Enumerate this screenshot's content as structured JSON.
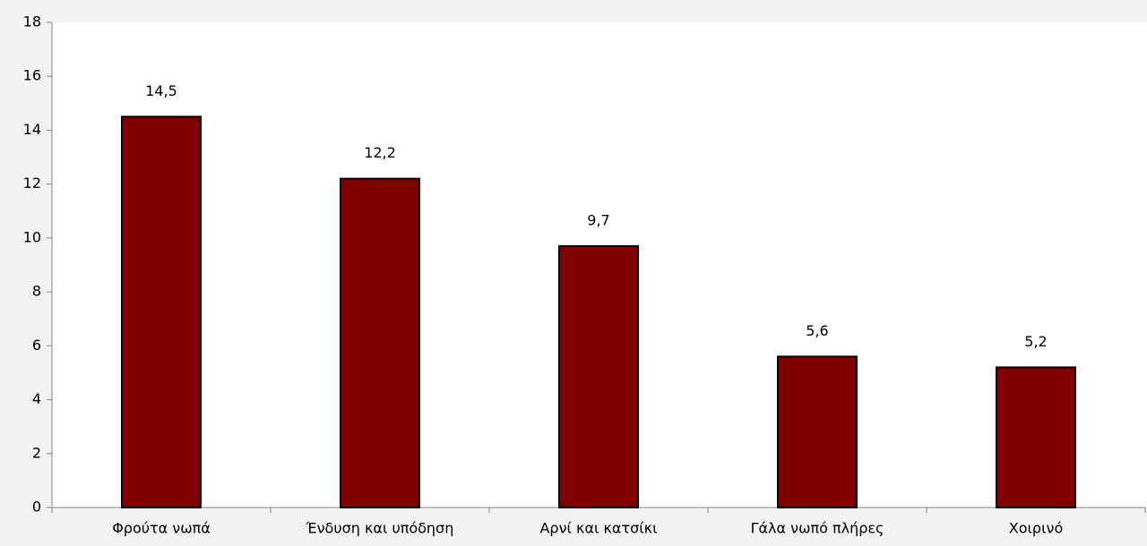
{
  "chart_data": {
    "type": "bar",
    "categories": [
      "Φρούτα νωπά",
      "Ένδυση και υπόδηση",
      "Αρνί και κατσίκι",
      "Γάλα νωπό πλήρες",
      "Χοιρινό"
    ],
    "values": [
      14.5,
      12.2,
      9.7,
      5.6,
      5.2
    ],
    "value_labels": [
      "14,5",
      "12,2",
      "9,7",
      "5,6",
      "5,2"
    ],
    "color": "#800000",
    "ylim": [
      0,
      18
    ],
    "yticks": [
      0,
      2,
      4,
      6,
      8,
      10,
      12,
      14,
      16,
      18
    ],
    "grid": false
  }
}
